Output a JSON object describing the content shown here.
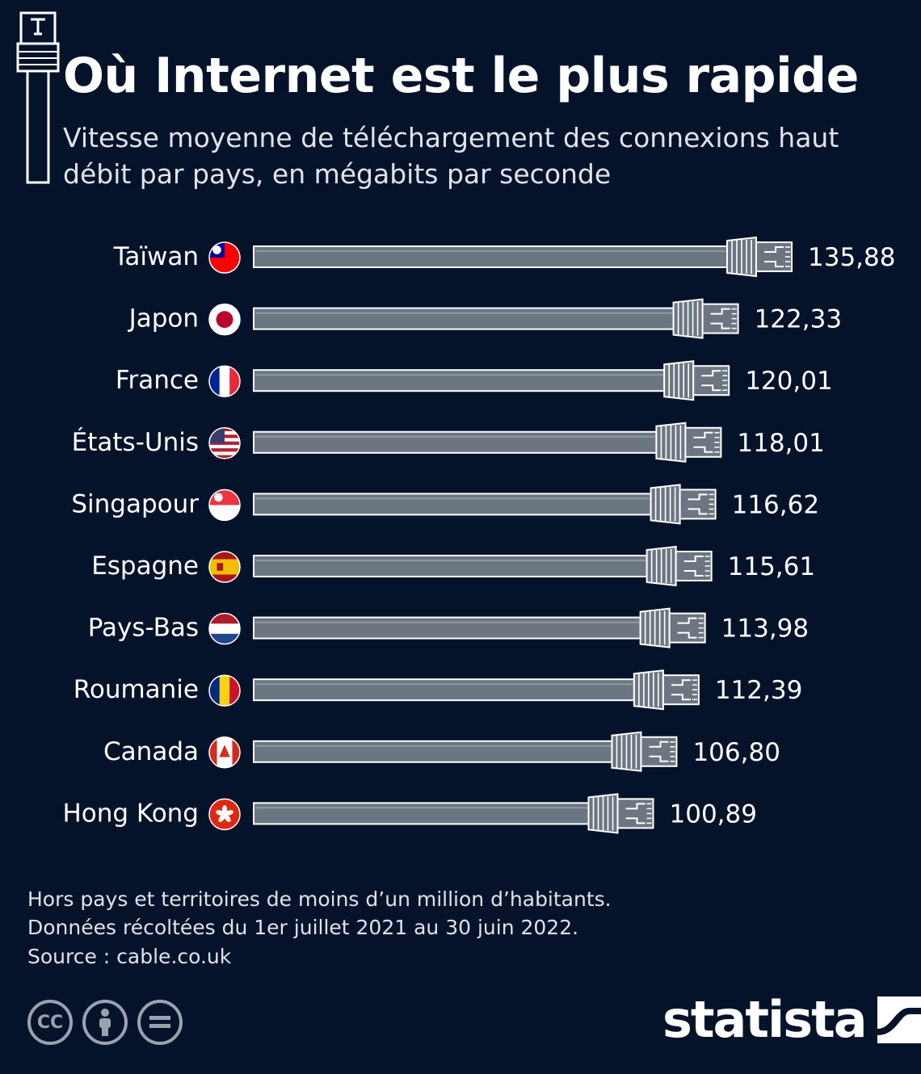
{
  "header": {
    "title": "Où Internet est le plus rapide",
    "subtitle": "Vitesse moyenne de téléchargement des connexions haut débit par pays, en mégabits par seconde"
  },
  "chart_data": {
    "type": "bar",
    "orientation": "horizontal",
    "categories": [
      "Taïwan",
      "Japon",
      "France",
      "États-Unis",
      "Singapour",
      "Espagne",
      "Pays-Bas",
      "Roumanie",
      "Canada",
      "Hong Kong"
    ],
    "values": [
      135.88,
      122.33,
      120.01,
      118.01,
      116.62,
      115.61,
      113.98,
      112.39,
      106.8,
      100.89
    ],
    "value_labels": [
      "135,88",
      "122,33",
      "120,01",
      "118,01",
      "116,62",
      "115,61",
      "113,98",
      "112,39",
      "106,80",
      "100,89"
    ],
    "flags": [
      "taiwan-flag",
      "japan-flag",
      "france-flag",
      "usa-flag",
      "singapore-flag",
      "spain-flag",
      "netherlands-flag",
      "romania-flag",
      "canada-flag",
      "hong-kong-flag"
    ],
    "bar_style": "ethernet-cable",
    "colors": {
      "background": "#05132a",
      "cable": "#6c7681",
      "cable_outline": "#ffffff",
      "text": "#ffffff"
    }
  },
  "footer": {
    "note_line1": "Hors pays et territoires de moins d’un million d’habitants.",
    "note_line2": "Données récoltées du 1er juillet 2021 au 30 juin 2022.",
    "source": "Source : cable.co.uk",
    "license_icons": [
      "cc-icon",
      "attribution-icon",
      "no-derivatives-icon"
    ],
    "cc_text": "CC",
    "brand": "statista"
  }
}
